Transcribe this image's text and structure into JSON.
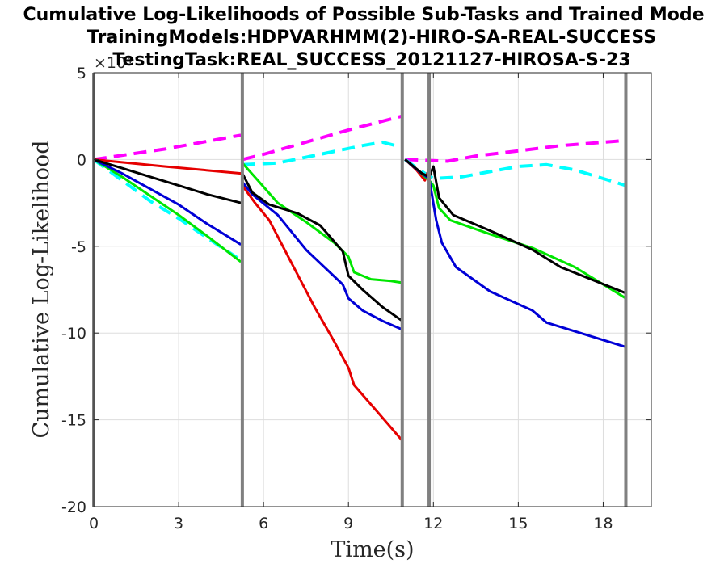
{
  "chart_data": {
    "type": "line",
    "title": [
      "Cumulative Log-Likelihoods of Possible Sub-Tasks and Trained Mode",
      "TrainingModels:HDPVARHMM(2)-HIRO-SA-REAL-SUCCESS",
      "TestingTask:REAL_SUCCESS_20121127-HIROSA-S-23"
    ],
    "xlabel": "Time(s)",
    "ylabel": "Cumulative Log-Likelihood",
    "y_exponent_label": "×10⁴",
    "xlim": [
      0,
      19.7
    ],
    "ylim": [
      -20,
      5
    ],
    "xticks": [
      0,
      3,
      6,
      9,
      12,
      15,
      18
    ],
    "yticks": [
      5,
      0,
      -5,
      -10,
      -15,
      -20
    ],
    "grid": true,
    "colors": {
      "red": "#e60000",
      "green": "#00e600",
      "blue": "#0000d6",
      "black": "#000000",
      "magenta": "#ff00ff",
      "cyan": "#00ffff",
      "boundary": "#808080",
      "grid": "#dddddd",
      "axis": "#262626"
    },
    "boundaries": [
      0,
      5.25,
      10.9,
      11.85,
      18.8
    ],
    "series": [
      {
        "color": "magenta",
        "dash": "dashed",
        "segments": [
          [
            [
              0,
              0
            ],
            [
              2.5,
              0.6
            ],
            [
              5.2,
              1.4
            ]
          ],
          [
            [
              5.25,
              0
            ],
            [
              6,
              0.3
            ],
            [
              7.5,
              1
            ],
            [
              9,
              1.7
            ],
            [
              10.9,
              2.5
            ]
          ],
          [
            [
              11,
              0
            ],
            [
              12.5,
              -0.1
            ],
            [
              13.5,
              0.2
            ],
            [
              15,
              0.5
            ],
            [
              16.5,
              0.8
            ],
            [
              18.8,
              1.1
            ]
          ]
        ]
      },
      {
        "color": "cyan",
        "dash": "dashed",
        "segments": [
          [
            [
              0,
              0
            ],
            [
              1,
              -1.2
            ],
            [
              2,
              -2.4
            ],
            [
              3,
              -3.4
            ],
            [
              4,
              -4.5
            ],
            [
              5.2,
              -5.8
            ]
          ],
          [
            [
              5.25,
              -0.3
            ],
            [
              6.5,
              -0.2
            ],
            [
              8,
              0.3
            ],
            [
              9.5,
              0.8
            ],
            [
              10.2,
              1.0
            ],
            [
              10.9,
              0.7
            ]
          ],
          [
            [
              11,
              0
            ],
            [
              11.5,
              -0.6
            ],
            [
              12,
              -1.1
            ],
            [
              13,
              -1.0
            ],
            [
              14,
              -0.7
            ],
            [
              15,
              -0.4
            ],
            [
              16,
              -0.3
            ],
            [
              17,
              -0.6
            ],
            [
              18,
              -1.1
            ],
            [
              18.8,
              -1.5
            ]
          ]
        ]
      },
      {
        "color": "red",
        "dash": "solid",
        "segments": [
          [
            [
              0,
              0
            ],
            [
              2.5,
              -0.4
            ],
            [
              5.2,
              -0.8
            ]
          ],
          [
            [
              5.25,
              -1.5
            ],
            [
              5.7,
              -2.5
            ],
            [
              6.2,
              -3.5
            ],
            [
              7,
              -6
            ],
            [
              7.8,
              -8.5
            ],
            [
              8.5,
              -10.5
            ],
            [
              9,
              -12
            ],
            [
              9.2,
              -13
            ],
            [
              10,
              -14.5
            ],
            [
              10.9,
              -16.2
            ]
          ],
          [
            [
              11,
              0
            ],
            [
              11.4,
              -0.6
            ],
            [
              11.7,
              -1.2
            ],
            [
              11.85,
              -0.5
            ]
          ]
        ]
      },
      {
        "color": "green",
        "dash": "solid",
        "segments": [
          [
            [
              0,
              0
            ],
            [
              1,
              -1
            ],
            [
              2,
              -2.1
            ],
            [
              3,
              -3.2
            ],
            [
              4,
              -4.4
            ],
            [
              5.2,
              -5.9
            ]
          ],
          [
            [
              5.25,
              -0.2
            ],
            [
              5.8,
              -1.2
            ],
            [
              6.5,
              -2.5
            ],
            [
              7.5,
              -3.6
            ],
            [
              8.5,
              -4.8
            ],
            [
              9,
              -5.6
            ],
            [
              9.2,
              -6.5
            ],
            [
              9.8,
              -6.9
            ],
            [
              10.5,
              -7
            ],
            [
              10.9,
              -7.1
            ]
          ],
          [
            [
              11,
              0
            ],
            [
              11.5,
              -0.7
            ],
            [
              11.85,
              -1.2
            ],
            [
              12,
              -1.5
            ],
            [
              12.2,
              -2.8
            ],
            [
              12.6,
              -3.5
            ],
            [
              14,
              -4.3
            ],
            [
              15.5,
              -5.1
            ],
            [
              17,
              -6.2
            ],
            [
              18.8,
              -8
            ]
          ]
        ]
      },
      {
        "color": "blue",
        "dash": "solid",
        "segments": [
          [
            [
              0,
              0
            ],
            [
              1,
              -0.8
            ],
            [
              2,
              -1.7
            ],
            [
              3,
              -2.6
            ],
            [
              4,
              -3.7
            ],
            [
              5.2,
              -4.9
            ]
          ],
          [
            [
              5.25,
              -1.3
            ],
            [
              5.6,
              -2
            ],
            [
              6.5,
              -3.2
            ],
            [
              7.5,
              -5.2
            ],
            [
              8.8,
              -7.2
            ],
            [
              9,
              -8
            ],
            [
              9.5,
              -8.7
            ],
            [
              10.2,
              -9.3
            ],
            [
              10.9,
              -9.8
            ]
          ],
          [
            [
              11,
              0
            ],
            [
              11.5,
              -0.7
            ],
            [
              11.85,
              -1.1
            ],
            [
              12.1,
              -3.5
            ],
            [
              12.3,
              -4.8
            ],
            [
              12.8,
              -6.2
            ],
            [
              14,
              -7.6
            ],
            [
              15.5,
              -8.7
            ],
            [
              16,
              -9.4
            ],
            [
              17,
              -9.9
            ],
            [
              18.8,
              -10.8
            ]
          ]
        ]
      },
      {
        "color": "black",
        "dash": "solid",
        "segments": [
          [
            [
              0,
              0
            ],
            [
              1,
              -0.5
            ],
            [
              2,
              -1
            ],
            [
              3,
              -1.5
            ],
            [
              4,
              -2
            ],
            [
              5.2,
              -2.5
            ]
          ],
          [
            [
              5.25,
              -0.8
            ],
            [
              5.6,
              -1.9
            ],
            [
              6.2,
              -2.6
            ],
            [
              7.2,
              -3.1
            ],
            [
              8,
              -3.8
            ],
            [
              8.8,
              -5.3
            ],
            [
              9,
              -6.7
            ],
            [
              9.5,
              -7.5
            ],
            [
              10.2,
              -8.5
            ],
            [
              10.9,
              -9.3
            ]
          ],
          [
            [
              11,
              0
            ],
            [
              11.6,
              -0.8
            ],
            [
              11.85,
              -1
            ],
            [
              12,
              -0.4
            ],
            [
              12.2,
              -2.2
            ],
            [
              12.7,
              -3.2
            ],
            [
              14,
              -4.1
            ],
            [
              15.5,
              -5.2
            ],
            [
              16.5,
              -6.2
            ],
            [
              18.8,
              -7.7
            ]
          ]
        ]
      }
    ]
  }
}
